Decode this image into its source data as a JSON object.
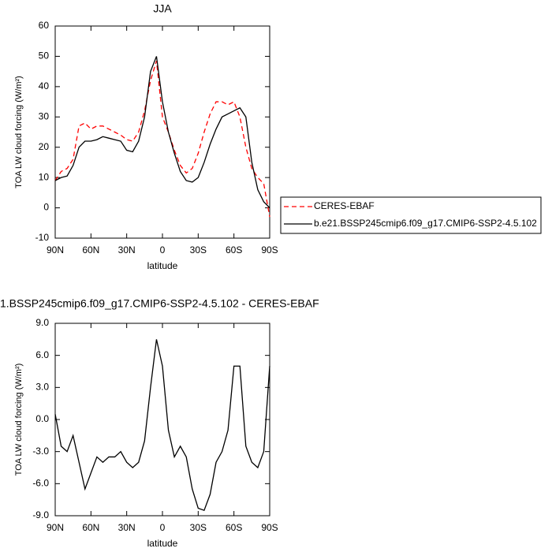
{
  "chart_data": [
    {
      "type": "line",
      "title": "JJA",
      "xlabel": "latitude",
      "ylabel": "TOA LW cloud forcing (W/m²)",
      "x": [
        90,
        85,
        80,
        75,
        70,
        65,
        60,
        55,
        50,
        45,
        40,
        35,
        30,
        25,
        20,
        15,
        10,
        5,
        0,
        -5,
        -10,
        -15,
        -20,
        -25,
        -30,
        -35,
        -40,
        -45,
        -50,
        -55,
        -60,
        -65,
        -70,
        -75,
        -80,
        -85,
        -90
      ],
      "xlim": [
        90,
        -90
      ],
      "xticks": [
        {
          "value": 90,
          "label": "90N"
        },
        {
          "value": 60,
          "label": "60N"
        },
        {
          "value": 30,
          "label": "30N"
        },
        0,
        {
          "value": -30,
          "label": "30S"
        },
        {
          "value": -60,
          "label": "60S"
        },
        {
          "value": -90,
          "label": "90S"
        }
      ],
      "ylim": [
        -10,
        60
      ],
      "yticks": [
        -10,
        0,
        10,
        20,
        30,
        40,
        50,
        60
      ],
      "legend": "right",
      "series": [
        {
          "name": "CERES-EBAF",
          "color": "#ff0000",
          "linestyle": "dashed",
          "values": [
            9,
            12,
            13,
            16,
            27,
            28,
            26,
            27,
            27,
            26,
            25,
            24,
            22.5,
            22,
            25,
            32,
            42,
            48.5,
            30,
            25,
            19,
            14,
            11.5,
            13,
            18,
            25,
            31,
            35,
            35,
            34,
            35,
            30,
            20,
            13,
            10,
            8,
            -3
          ]
        },
        {
          "name": "b.e21.BSSP245cmip6.f09_g17.CMIP6-SSP2-4.5.102",
          "color": "#000000",
          "linestyle": "solid",
          "values": [
            9,
            10,
            10.5,
            14,
            20,
            22,
            22,
            22.5,
            23.5,
            23,
            22.5,
            22,
            19,
            18.5,
            22,
            30,
            45,
            50,
            35,
            25,
            18,
            12,
            9,
            8.5,
            10,
            15,
            21,
            26,
            30,
            31,
            32,
            33,
            30,
            15,
            6,
            2,
            0
          ]
        }
      ]
    },
    {
      "type": "line",
      "title": "1.BSSP245cmip6.f09_g17.CMIP6-SSP2-4.5.102 - CERES-EBAF",
      "xlabel": "latitude",
      "ylabel": "TOA LW cloud forcing (W/m²)",
      "x": [
        90,
        85,
        80,
        75,
        70,
        65,
        60,
        55,
        50,
        45,
        40,
        35,
        30,
        25,
        20,
        15,
        10,
        5,
        0,
        -5,
        -10,
        -15,
        -20,
        -25,
        -30,
        -35,
        -40,
        -45,
        -50,
        -55,
        -60,
        -65,
        -70,
        -75,
        -80,
        -85,
        -90
      ],
      "xlim": [
        90,
        -90
      ],
      "xticks": [
        {
          "value": 90,
          "label": "90N"
        },
        {
          "value": 60,
          "label": "60N"
        },
        {
          "value": 30,
          "label": "30N"
        },
        0,
        {
          "value": -30,
          "label": "30S"
        },
        {
          "value": -60,
          "label": "60S"
        },
        {
          "value": -90,
          "label": "90S"
        }
      ],
      "ylim": [
        -9,
        9
      ],
      "yticks": [
        {
          "value": -9,
          "label": "-9.0"
        },
        {
          "value": -6,
          "label": "-6.0"
        },
        {
          "value": -3,
          "label": "-3.0"
        },
        {
          "value": 0,
          "label": "0.0"
        },
        {
          "value": 3,
          "label": "3.0"
        },
        {
          "value": 6,
          "label": "6.0"
        },
        {
          "value": 9,
          "label": "9.0"
        }
      ],
      "color": "#000000",
      "linestyle": "solid",
      "values": [
        0.5,
        -2.5,
        -3,
        -1.5,
        -4,
        -6.5,
        -5,
        -3.5,
        -4,
        -3.5,
        -3.5,
        -3,
        -4,
        -4.5,
        -4,
        -2,
        3,
        7.5,
        5,
        -1,
        -3.5,
        -2.5,
        -3.5,
        -6.5,
        -8.3,
        -8.5,
        -7,
        -4,
        -3,
        -1,
        5,
        5,
        -2.5,
        -4,
        -4.5,
        -3,
        5
      ]
    }
  ]
}
